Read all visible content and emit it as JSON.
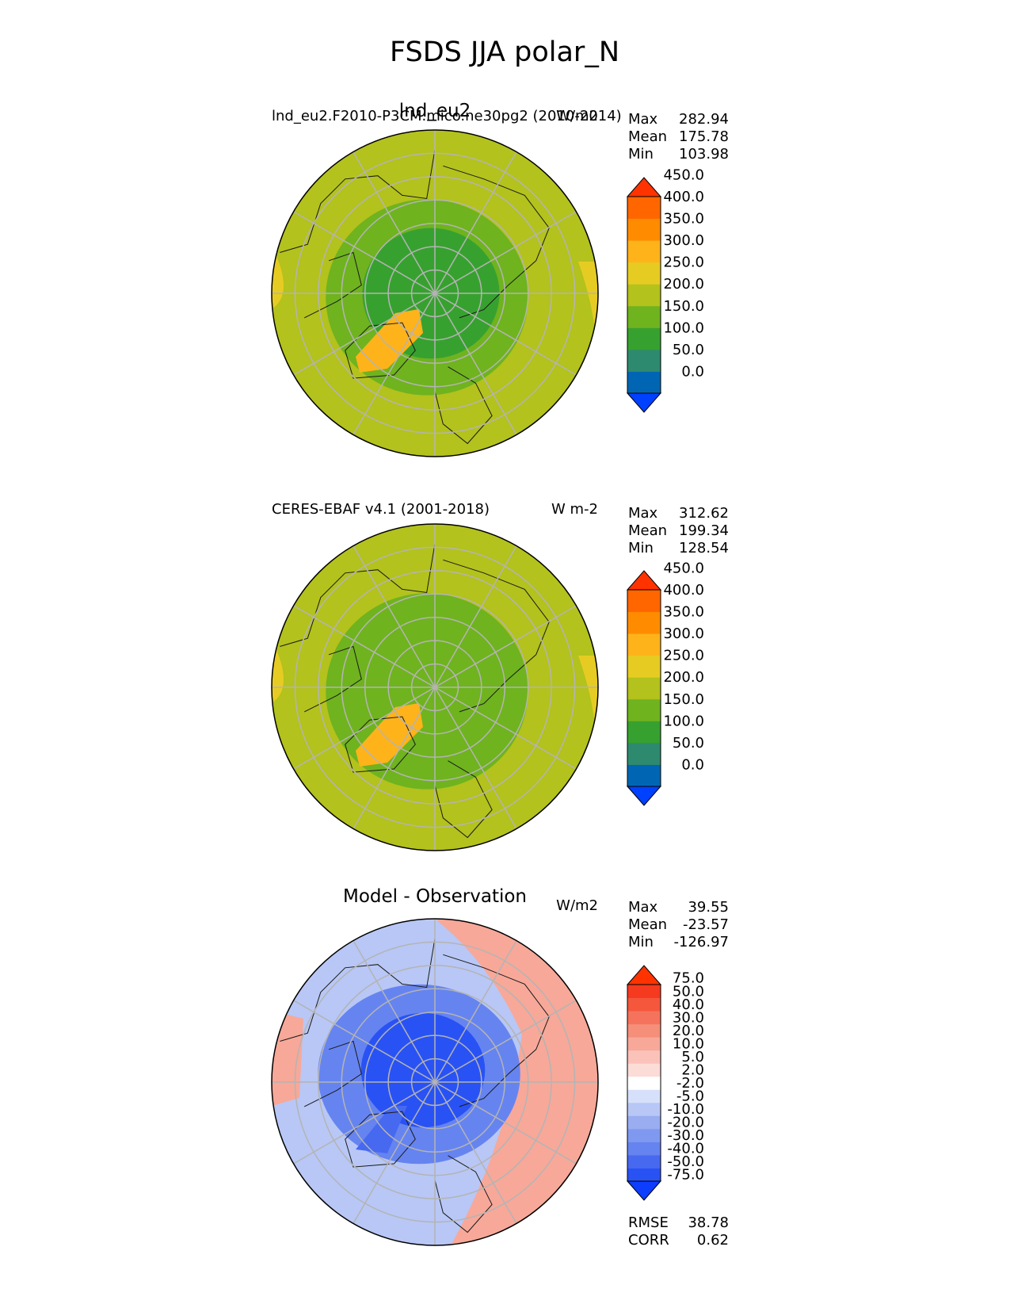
{
  "figure_title": "FSDS JJA polar_N",
  "chart_data": [
    {
      "type": "heatmap",
      "projection": "north-polar-stereographic",
      "title": "lnd_eu2",
      "left_label": "lnd_eu2.F2010-P3CM.mico.ne30pg2 (2010-2014)",
      "units": "W/m2",
      "stats": [
        {
          "label": "Max",
          "value": "282.94"
        },
        {
          "label": "Mean",
          "value": "175.78"
        },
        {
          "label": "Min",
          "value": "103.98"
        }
      ],
      "colorbar": {
        "levels": [
          "0.0",
          "50.0",
          "100.0",
          "150.0",
          "200.0",
          "250.0",
          "300.0",
          "350.0",
          "400.0",
          "450.0"
        ],
        "colors": [
          "#0040ff",
          "#0066b3",
          "#2e8a6e",
          "#37a12f",
          "#6fb31f",
          "#b3c21d",
          "#e6cc22",
          "#ffb31a",
          "#ff8c00",
          "#ff6600",
          "#ff3300"
        ]
      },
      "dominant_range": [
        150,
        250
      ],
      "greenland_value": 300
    },
    {
      "type": "heatmap",
      "projection": "north-polar-stereographic",
      "title": "",
      "left_label": "CERES-EBAF v4.1 (2001-2018)",
      "units": "W m-2",
      "stats": [
        {
          "label": "Max",
          "value": "312.62"
        },
        {
          "label": "Mean",
          "value": "199.34"
        },
        {
          "label": "Min",
          "value": "128.54"
        }
      ],
      "colorbar": {
        "levels": [
          "0.0",
          "50.0",
          "100.0",
          "150.0",
          "200.0",
          "250.0",
          "300.0",
          "350.0",
          "400.0",
          "450.0"
        ],
        "colors": [
          "#0040ff",
          "#0066b3",
          "#2e8a6e",
          "#37a12f",
          "#6fb31f",
          "#b3c21d",
          "#e6cc22",
          "#ffb31a",
          "#ff8c00",
          "#ff6600",
          "#ff3300"
        ]
      },
      "dominant_range": [
        150,
        250
      ],
      "greenland_value": 300
    },
    {
      "type": "heatmap",
      "projection": "north-polar-stereographic",
      "title": "Model - Observation",
      "left_label": "",
      "units": "W/m2",
      "stats": [
        {
          "label": "Max",
          "value": "39.55"
        },
        {
          "label": "Mean",
          "value": "-23.57"
        },
        {
          "label": "Min",
          "value": "-126.97"
        }
      ],
      "colorbar": {
        "levels": [
          "-75.0",
          "-50.0",
          "-40.0",
          "-30.0",
          "-20.0",
          "-10.0",
          "-5.0",
          "-2.0",
          "2.0",
          "5.0",
          "10.0",
          "20.0",
          "30.0",
          "40.0",
          "50.0",
          "75.0"
        ],
        "colors": [
          "#0d3dff",
          "#2952f5",
          "#4769f0",
          "#6684f0",
          "#8099f0",
          "#99adf0",
          "#b8c7f5",
          "#d6e0fa",
          "#ffffff",
          "#fcdcd6",
          "#fac2b8",
          "#f7a899",
          "#f58f7a",
          "#f5735c",
          "#f5573d",
          "#f53a1f",
          "#ff3300"
        ]
      },
      "footer_stats": [
        {
          "label": "RMSE",
          "value": "38.78"
        },
        {
          "label": "CORR",
          "value": "0.62"
        }
      ]
    }
  ]
}
